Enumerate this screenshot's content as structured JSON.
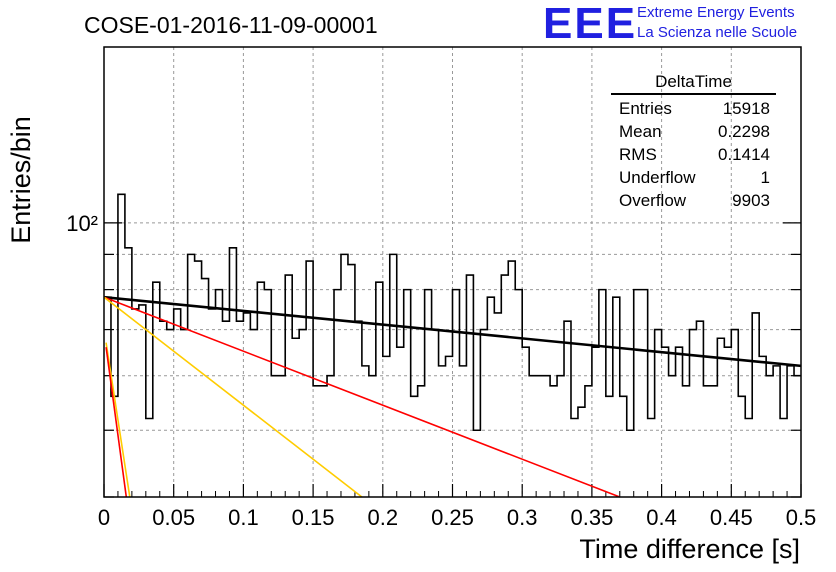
{
  "chart_data": {
    "type": "histogram",
    "title": "COSE-01-2016-11-09-00001",
    "xlabel": "Time difference [s]",
    "ylabel": "Entries/bin",
    "xlim": [
      0,
      0.5
    ],
    "ylim": [
      40,
      180
    ],
    "log_y": true,
    "grid": true,
    "x_ticks": [
      "0",
      "0.05",
      "0.1",
      "0.15",
      "0.2",
      "0.25",
      "0.3",
      "0.35",
      "0.4",
      "0.45",
      "0.5"
    ],
    "y_ticks": [
      "10²"
    ],
    "bin_width": 0.005,
    "bin_values": [
      78,
      56,
      110,
      92,
      75,
      76,
      52,
      82,
      72,
      70,
      75,
      70,
      90,
      88,
      83,
      75,
      80,
      72,
      92,
      72,
      74,
      70,
      82,
      80,
      60,
      60,
      84,
      68,
      70,
      88,
      58,
      58,
      60,
      80,
      90,
      87,
      72,
      62,
      60,
      82,
      64,
      90,
      66,
      80,
      56,
      58,
      80,
      70,
      62,
      64,
      80,
      62,
      84,
      50,
      70,
      78,
      74,
      84,
      88,
      80,
      66,
      60,
      60,
      60,
      58,
      60,
      72,
      52,
      54,
      58,
      66,
      80,
      56,
      78,
      56,
      50,
      80,
      80,
      52,
      70,
      66,
      60,
      66,
      58,
      70,
      72,
      58,
      58,
      68,
      66,
      70,
      56,
      52,
      74,
      64,
      60,
      62,
      52,
      62,
      60
    ],
    "fits": [
      {
        "name": "black",
        "color": "#000000",
        "points": [
          [
            0,
            78
          ],
          [
            0.5,
            62
          ]
        ]
      },
      {
        "name": "red",
        "color": "#ff0000",
        "points": [
          [
            0,
            78
          ],
          [
            0.37,
            40
          ]
        ]
      },
      {
        "name": "yellow",
        "color": "#ffcc00",
        "points": [
          [
            0,
            78
          ],
          [
            0.185,
            40
          ]
        ]
      },
      {
        "name": "yellow-steep",
        "color": "#ffcc00",
        "points": [
          [
            0.0015,
            67
          ],
          [
            0.0185,
            40
          ]
        ]
      },
      {
        "name": "red-steep",
        "color": "#ff0000",
        "points": [
          [
            0.0015,
            66
          ],
          [
            0.016,
            40
          ]
        ]
      }
    ],
    "stats": {
      "title": "DeltaTime",
      "rows": [
        {
          "label": "Entries",
          "value": "15918"
        },
        {
          "label": "Mean",
          "value": "0.2298"
        },
        {
          "label": "RMS",
          "value": "0.1414"
        },
        {
          "label": "Underflow",
          "value": "1"
        },
        {
          "label": "Overflow",
          "value": "9903"
        }
      ]
    }
  },
  "brand": {
    "logo": "EEE",
    "line1": "Extreme Energy Events",
    "line2": "La Scienza nelle Scuole"
  }
}
